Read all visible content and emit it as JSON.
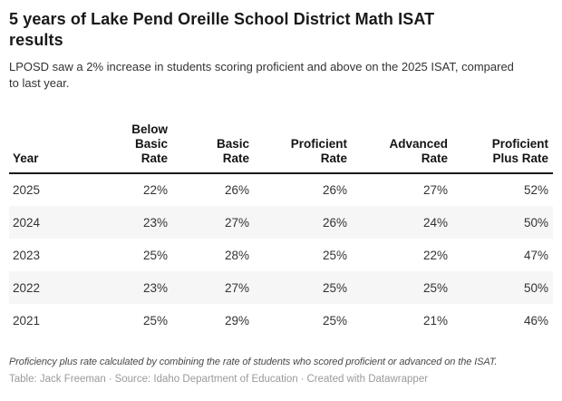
{
  "header": {
    "title": "5 years of Lake Pend Oreille School District Math ISAT results",
    "title_lines": [
      "5 years of Lake Pend Oreille School District Math ISAT",
      "results"
    ],
    "description": "LPOSD saw a 2% increase in students scoring proficient and above on the 2025 ISAT, compared to last year.",
    "description_lines": [
      "LPOSD saw a 2% increase in students scoring proficient and above on the 2025 ISAT, compared",
      "to last year."
    ]
  },
  "chart_data": {
    "type": "table",
    "title": "5 years of Lake Pend Oreille School District Math ISAT results",
    "subtitle": "LPOSD saw a 2% increase in students scoring proficient and above on the 2025 ISAT, compared to last year.",
    "columns": [
      "Year",
      "Below Basic Rate",
      "Basic Rate",
      "Proficient Rate",
      "Advanced Rate",
      "Proficient Plus Rate"
    ],
    "column_line_breaks": [
      [
        "Year"
      ],
      [
        "Below",
        "Basic",
        "Rate"
      ],
      [
        "Basic",
        "Rate"
      ],
      [
        "Proficient",
        "Rate"
      ],
      [
        "Advanced",
        "Rate"
      ],
      [
        "Proficient",
        "Plus Rate"
      ]
    ],
    "column_alignments": [
      "left",
      "right",
      "right",
      "right",
      "right",
      "right"
    ],
    "rows": [
      [
        "2025",
        "22%",
        "26%",
        "26%",
        "27%",
        "52%"
      ],
      [
        "2024",
        "23%",
        "27%",
        "26%",
        "24%",
        "50%"
      ],
      [
        "2023",
        "25%",
        "28%",
        "25%",
        "22%",
        "47%"
      ],
      [
        "2022",
        "23%",
        "27%",
        "25%",
        "25%",
        "50%"
      ],
      [
        "2021",
        "25%",
        "29%",
        "25%",
        "21%",
        "46%"
      ]
    ],
    "row_striping": "even rows light gray",
    "legend_position": "none"
  },
  "footer": {
    "note": "Proficiency plus rate calculated by combining the rate of students who scored proficient or advanced on the ISAT.",
    "credits": {
      "byline": "Table: Jack Freeman",
      "separator": "·",
      "source": "Source: Idaho Department of Education",
      "created": "Created with Datawrapper"
    }
  },
  "colors": {
    "background": "#ffffff",
    "title_text": "#191919",
    "body_text": "#333333",
    "header_rule": "#1a1a1a",
    "row_stripe": "#f6f6f6",
    "note_text": "#494949",
    "credits_text": "#9a9a9a"
  }
}
